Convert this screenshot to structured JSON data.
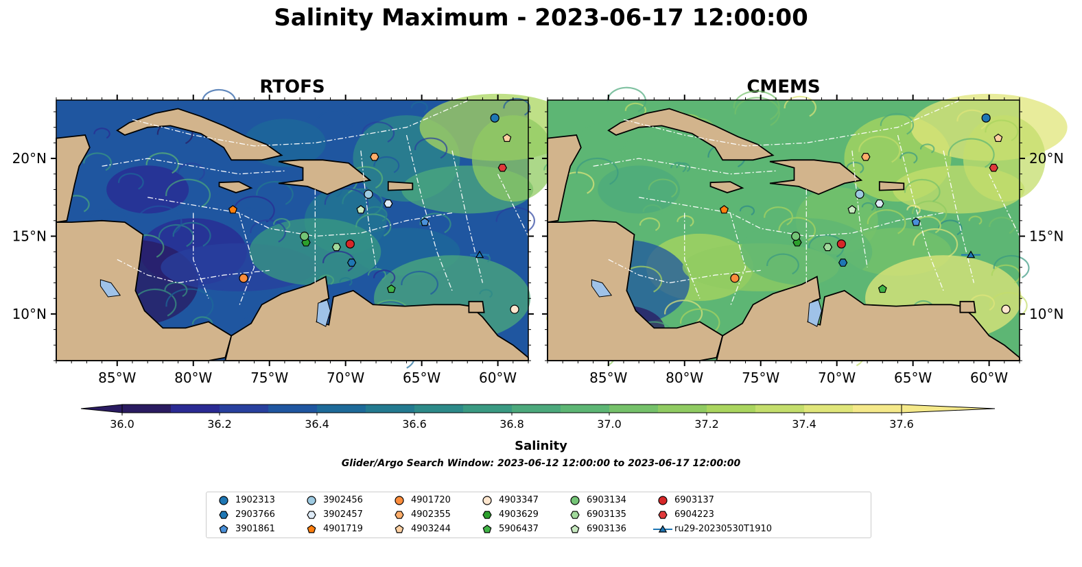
{
  "title": "Salinity Maximum - 2023-06-17 12:00:00",
  "panels": [
    {
      "title": "RTOFS",
      "model": "rtofs"
    },
    {
      "title": "CMEMS",
      "model": "cmems"
    }
  ],
  "map": {
    "lon_range": [
      -89.0,
      -58.0
    ],
    "lat_range": [
      7.0,
      23.75
    ],
    "lon_ticks": [
      {
        "value": -85,
        "label": "85°W"
      },
      {
        "value": -80,
        "label": "80°W"
      },
      {
        "value": -75,
        "label": "75°W"
      },
      {
        "value": -70,
        "label": "70°W"
      },
      {
        "value": -65,
        "label": "65°W"
      },
      {
        "value": -60,
        "label": "60°W"
      }
    ],
    "lat_ticks": [
      {
        "value": 20,
        "label": "20°N"
      },
      {
        "value": 15,
        "label": "15°N"
      },
      {
        "value": 10,
        "label": "10°N"
      }
    ],
    "land_color": "#d2b48c",
    "lake_color": "#9fc2e8"
  },
  "colorbar": {
    "label": "Salinity",
    "vmin": 36.0,
    "vmax": 37.6,
    "step": 0.1,
    "tick_values": [
      36.0,
      36.2,
      36.4,
      36.6,
      36.8,
      37.0,
      37.2,
      37.4,
      37.6
    ],
    "tick_labels": [
      "36.0",
      "36.2",
      "36.4",
      "36.6",
      "36.8",
      "37.0",
      "37.2",
      "37.4",
      "37.6"
    ],
    "colors": [
      "#2a1b61",
      "#2a2a93",
      "#28409e",
      "#1f56a0",
      "#1d6a99",
      "#237a90",
      "#2d8a89",
      "#3a9a82",
      "#4ca97c",
      "#5db674",
      "#75c16a",
      "#90cb62",
      "#aad55f",
      "#c4de6c",
      "#e0e67a",
      "#f5e98a"
    ],
    "extend": "both"
  },
  "search_window": "Glider/Argo Search Window: 2023-06-12 12:00:00 to 2023-06-17 12:00:00",
  "legend": [
    {
      "label": "1902313",
      "marker": "circle",
      "color": "#1f77b4"
    },
    {
      "label": "2903766",
      "marker": "hexagon",
      "color": "#1f77b4"
    },
    {
      "label": "3901861",
      "marker": "pentagon",
      "color": "#4a90d9"
    },
    {
      "label": "3902456",
      "marker": "circle",
      "color": "#9ecae1"
    },
    {
      "label": "3902457",
      "marker": "hexagon",
      "color": "#deebf7"
    },
    {
      "label": "4901719",
      "marker": "pentagon",
      "color": "#ff7f0e"
    },
    {
      "label": "4901720",
      "marker": "circle",
      "color": "#fd8d3c"
    },
    {
      "label": "4902355",
      "marker": "hexagon",
      "color": "#fdae6b"
    },
    {
      "label": "4903244",
      "marker": "pentagon",
      "color": "#fdd0a2"
    },
    {
      "label": "4903347",
      "marker": "circle",
      "color": "#fee6ce"
    },
    {
      "label": "4903629",
      "marker": "hexagon",
      "color": "#2ca02c"
    },
    {
      "label": "5906437",
      "marker": "pentagon",
      "color": "#41b447"
    },
    {
      "label": "6903134",
      "marker": "circle",
      "color": "#74c476"
    },
    {
      "label": "6903135",
      "marker": "hexagon",
      "color": "#a1d99b"
    },
    {
      "label": "6903136",
      "marker": "pentagon",
      "color": "#c7e9c0"
    },
    {
      "label": "6903137",
      "marker": "circle",
      "color": "#d62728"
    },
    {
      "label": "6904223",
      "marker": "hexagon",
      "color": "#e0393b"
    },
    {
      "label": "ru29-20230530T1910",
      "marker": "triangle-line",
      "color": "#1f77b4"
    }
  ],
  "floats": [
    {
      "id": "1902313",
      "lon": -60.2,
      "lat": 22.6
    },
    {
      "id": "2903766",
      "lon": -69.6,
      "lat": 13.3
    },
    {
      "id": "3901861",
      "lon": -64.8,
      "lat": 15.9
    },
    {
      "id": "3902456",
      "lon": -68.5,
      "lat": 17.7
    },
    {
      "id": "3902457",
      "lon": -67.2,
      "lat": 17.1
    },
    {
      "id": "4901719",
      "lon": -77.4,
      "lat": 16.7
    },
    {
      "id": "4901720",
      "lon": -76.7,
      "lat": 12.3
    },
    {
      "id": "4902355",
      "lon": -68.1,
      "lat": 20.1
    },
    {
      "id": "4903244",
      "lon": -59.4,
      "lat": 21.3
    },
    {
      "id": "4903347",
      "lon": -58.9,
      "lat": 10.3
    },
    {
      "id": "4903629",
      "lon": -72.6,
      "lat": 14.6
    },
    {
      "id": "5906437",
      "lon": -67.0,
      "lat": 11.6
    },
    {
      "id": "6903134",
      "lon": -72.7,
      "lat": 15.0
    },
    {
      "id": "6903135",
      "lon": -70.6,
      "lat": 14.3
    },
    {
      "id": "6903136",
      "lon": -69.0,
      "lat": 16.7
    },
    {
      "id": "6903137",
      "lon": -69.7,
      "lat": 14.5
    },
    {
      "id": "6904223",
      "lon": -59.7,
      "lat": 19.4
    },
    {
      "id": "ru29-20230530T1910",
      "lon": -61.2,
      "lat": 13.8
    }
  ]
}
